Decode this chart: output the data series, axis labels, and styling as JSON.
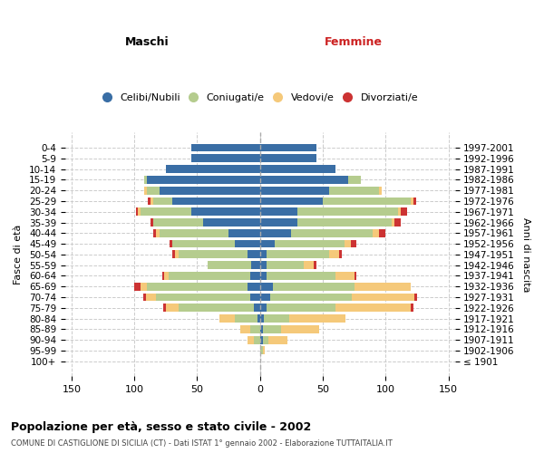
{
  "age_groups": [
    "100+",
    "95-99",
    "90-94",
    "85-89",
    "80-84",
    "75-79",
    "70-74",
    "65-69",
    "60-64",
    "55-59",
    "50-54",
    "45-49",
    "40-44",
    "35-39",
    "30-34",
    "25-29",
    "20-24",
    "15-19",
    "10-14",
    "5-9",
    "0-4"
  ],
  "birth_years": [
    "≤ 1901",
    "1902-1906",
    "1907-1911",
    "1912-1916",
    "1917-1921",
    "1922-1926",
    "1927-1931",
    "1932-1936",
    "1937-1941",
    "1942-1946",
    "1947-1951",
    "1952-1956",
    "1957-1961",
    "1962-1966",
    "1967-1971",
    "1972-1976",
    "1977-1981",
    "1982-1986",
    "1987-1991",
    "1992-1996",
    "1997-2001"
  ],
  "males": {
    "celibi": [
      0,
      0,
      0,
      0,
      2,
      5,
      8,
      10,
      8,
      7,
      10,
      20,
      25,
      45,
      55,
      70,
      80,
      90,
      75,
      55,
      55
    ],
    "coniugati": [
      0,
      0,
      5,
      8,
      18,
      60,
      75,
      80,
      65,
      35,
      55,
      50,
      55,
      40,
      40,
      15,
      10,
      2,
      0,
      0,
      0
    ],
    "vedovi": [
      0,
      0,
      5,
      8,
      12,
      10,
      8,
      5,
      3,
      0,
      3,
      0,
      3,
      0,
      2,
      2,
      2,
      0,
      0,
      0,
      0
    ],
    "divorziati": [
      0,
      0,
      0,
      0,
      0,
      2,
      2,
      5,
      2,
      0,
      2,
      2,
      2,
      2,
      2,
      2,
      0,
      0,
      0,
      0,
      0
    ]
  },
  "females": {
    "nubili": [
      0,
      0,
      2,
      2,
      3,
      5,
      8,
      10,
      5,
      5,
      5,
      12,
      25,
      30,
      30,
      50,
      55,
      70,
      60,
      45,
      45
    ],
    "coniugate": [
      0,
      2,
      5,
      15,
      20,
      55,
      65,
      65,
      55,
      30,
      50,
      55,
      65,
      75,
      80,
      70,
      40,
      10,
      0,
      0,
      0
    ],
    "vedove": [
      0,
      2,
      15,
      30,
      45,
      60,
      50,
      45,
      15,
      8,
      8,
      5,
      5,
      2,
      2,
      2,
      2,
      0,
      0,
      0,
      0
    ],
    "divorziate": [
      0,
      0,
      0,
      0,
      0,
      2,
      2,
      0,
      2,
      2,
      2,
      5,
      5,
      5,
      5,
      2,
      0,
      0,
      0,
      0,
      0
    ]
  },
  "colors": {
    "celibi": "#3A6EA5",
    "coniugati": "#B5CC8E",
    "vedovi": "#F5C97A",
    "divorziati": "#CC3333"
  },
  "title": "Popolazione per età, sesso e stato civile - 2002",
  "subtitle": "COMUNE DI CASTIGLIONE DI SICILIA (CT) - Dati ISTAT 1° gennaio 2002 - Elaborazione TUTTAITALIA.IT",
  "xlabel_left": "Maschi",
  "xlabel_right": "Femmine",
  "ylabel_left": "Fasce di età",
  "ylabel_right": "Anni di nascita",
  "xlim": 155,
  "background_color": "#ffffff",
  "grid_color": "#cccccc"
}
